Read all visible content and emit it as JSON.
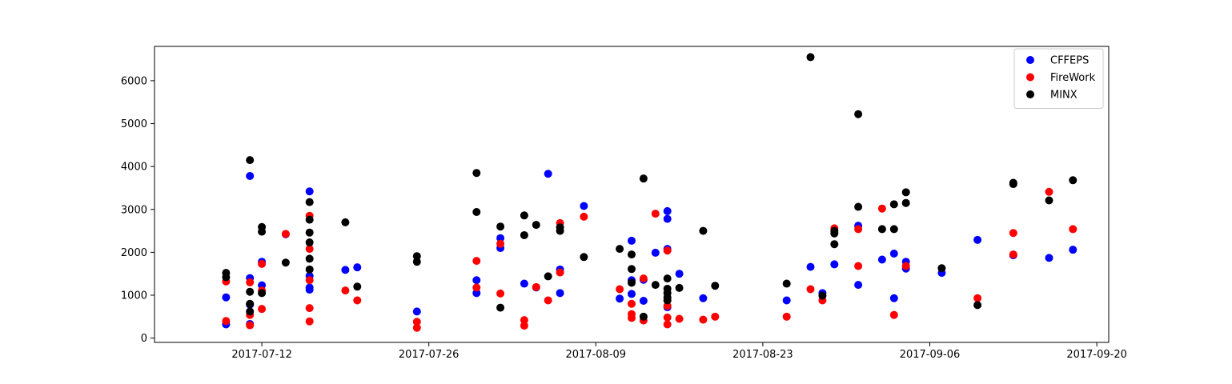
{
  "chart_data": {
    "type": "scatter",
    "title": "",
    "xlabel": "",
    "ylabel": "",
    "x_axis": {
      "type": "date",
      "range": [
        "2017-07-03",
        "2017-09-21"
      ],
      "ticks": [
        "2017-07-12",
        "2017-07-26",
        "2017-08-09",
        "2017-08-23",
        "2017-09-06",
        "2017-09-20"
      ]
    },
    "y_axis": {
      "range": [
        -100,
        6800
      ],
      "ticks": [
        0,
        1000,
        2000,
        3000,
        4000,
        5000,
        6000
      ]
    },
    "grid": false,
    "legend": {
      "placement": "top-right"
    },
    "series": [
      {
        "name": "CFFEPS",
        "color": "#0000ff",
        "points": [
          [
            "2017-07-09",
            950
          ],
          [
            "2017-07-09",
            320
          ],
          [
            "2017-07-11",
            3780
          ],
          [
            "2017-07-11",
            1400
          ],
          [
            "2017-07-11",
            780
          ],
          [
            "2017-07-11",
            330
          ],
          [
            "2017-07-12",
            1780
          ],
          [
            "2017-07-12",
            1230
          ],
          [
            "2017-07-14",
            2420
          ],
          [
            "2017-07-16",
            3420
          ],
          [
            "2017-07-16",
            1450
          ],
          [
            "2017-07-16",
            1180
          ],
          [
            "2017-07-16",
            1130
          ],
          [
            "2017-07-19",
            1590
          ],
          [
            "2017-07-20",
            1650
          ],
          [
            "2017-07-25",
            620
          ],
          [
            "2017-07-30",
            1350
          ],
          [
            "2017-07-30",
            1050
          ],
          [
            "2017-08-01",
            2330
          ],
          [
            "2017-08-01",
            2100
          ],
          [
            "2017-08-03",
            1270
          ],
          [
            "2017-08-04",
            1180
          ],
          [
            "2017-08-05",
            3830
          ],
          [
            "2017-08-06",
            1600
          ],
          [
            "2017-08-06",
            1050
          ],
          [
            "2017-08-08",
            3080
          ],
          [
            "2017-08-11",
            920
          ],
          [
            "2017-08-12",
            2270
          ],
          [
            "2017-08-12",
            1350
          ],
          [
            "2017-08-12",
            1030
          ],
          [
            "2017-08-13",
            1360
          ],
          [
            "2017-08-13",
            870
          ],
          [
            "2017-08-14",
            1990
          ],
          [
            "2017-08-15",
            2960
          ],
          [
            "2017-08-15",
            2780
          ],
          [
            "2017-08-15",
            2080
          ],
          [
            "2017-08-15",
            720
          ],
          [
            "2017-08-16",
            1500
          ],
          [
            "2017-08-18",
            930
          ],
          [
            "2017-08-25",
            880
          ],
          [
            "2017-08-27",
            1660
          ],
          [
            "2017-08-28",
            1050
          ],
          [
            "2017-08-29",
            1720
          ],
          [
            "2017-08-31",
            2620
          ],
          [
            "2017-08-31",
            1240
          ],
          [
            "2017-09-02",
            1830
          ],
          [
            "2017-09-03",
            1970
          ],
          [
            "2017-09-03",
            930
          ],
          [
            "2017-09-04",
            1780
          ],
          [
            "2017-09-04",
            1620
          ],
          [
            "2017-09-07",
            1520
          ],
          [
            "2017-09-10",
            2290
          ],
          [
            "2017-09-13",
            1930
          ],
          [
            "2017-09-16",
            1870
          ],
          [
            "2017-09-18",
            2060
          ]
        ]
      },
      {
        "name": "FireWork",
        "color": "#ff0000",
        "points": [
          [
            "2017-07-09",
            1320
          ],
          [
            "2017-07-09",
            400
          ],
          [
            "2017-07-11",
            1300
          ],
          [
            "2017-07-11",
            540
          ],
          [
            "2017-07-11",
            300
          ],
          [
            "2017-07-12",
            1730
          ],
          [
            "2017-07-12",
            1110
          ],
          [
            "2017-07-12",
            680
          ],
          [
            "2017-07-14",
            2430
          ],
          [
            "2017-07-16",
            2850
          ],
          [
            "2017-07-16",
            2080
          ],
          [
            "2017-07-16",
            1350
          ],
          [
            "2017-07-16",
            700
          ],
          [
            "2017-07-16",
            390
          ],
          [
            "2017-07-19",
            1110
          ],
          [
            "2017-07-20",
            880
          ],
          [
            "2017-07-25",
            380
          ],
          [
            "2017-07-25",
            240
          ],
          [
            "2017-07-30",
            1800
          ],
          [
            "2017-07-30",
            1180
          ],
          [
            "2017-08-01",
            2200
          ],
          [
            "2017-08-01",
            1040
          ],
          [
            "2017-08-03",
            420
          ],
          [
            "2017-08-03",
            290
          ],
          [
            "2017-08-04",
            1190
          ],
          [
            "2017-08-05",
            880
          ],
          [
            "2017-08-06",
            2680
          ],
          [
            "2017-08-06",
            1530
          ],
          [
            "2017-08-08",
            2830
          ],
          [
            "2017-08-11",
            1140
          ],
          [
            "2017-08-12",
            800
          ],
          [
            "2017-08-12",
            560
          ],
          [
            "2017-08-12",
            470
          ],
          [
            "2017-08-13",
            1390
          ],
          [
            "2017-08-13",
            410
          ],
          [
            "2017-08-14",
            2900
          ],
          [
            "2017-08-15",
            2040
          ],
          [
            "2017-08-15",
            750
          ],
          [
            "2017-08-15",
            480
          ],
          [
            "2017-08-15",
            320
          ],
          [
            "2017-08-16",
            450
          ],
          [
            "2017-08-18",
            430
          ],
          [
            "2017-08-19",
            500
          ],
          [
            "2017-08-25",
            500
          ],
          [
            "2017-08-27",
            1140
          ],
          [
            "2017-08-28",
            880
          ],
          [
            "2017-08-29",
            2560
          ],
          [
            "2017-08-31",
            2540
          ],
          [
            "2017-08-31",
            1680
          ],
          [
            "2017-09-02",
            3020
          ],
          [
            "2017-09-03",
            540
          ],
          [
            "2017-09-04",
            1680
          ],
          [
            "2017-09-10",
            930
          ],
          [
            "2017-09-13",
            2450
          ],
          [
            "2017-09-13",
            1950
          ],
          [
            "2017-09-16",
            3410
          ],
          [
            "2017-09-18",
            2540
          ]
        ]
      },
      {
        "name": "MINX",
        "color": "#000000",
        "points": [
          [
            "2017-07-09",
            1520
          ],
          [
            "2017-07-09",
            1420
          ],
          [
            "2017-07-11",
            4150
          ],
          [
            "2017-07-11",
            1080
          ],
          [
            "2017-07-11",
            800
          ],
          [
            "2017-07-11",
            620
          ],
          [
            "2017-07-12",
            2590
          ],
          [
            "2017-07-12",
            2480
          ],
          [
            "2017-07-12",
            1050
          ],
          [
            "2017-07-14",
            1760
          ],
          [
            "2017-07-16",
            3170
          ],
          [
            "2017-07-16",
            2760
          ],
          [
            "2017-07-16",
            2460
          ],
          [
            "2017-07-16",
            2230
          ],
          [
            "2017-07-16",
            1850
          ],
          [
            "2017-07-16",
            1600
          ],
          [
            "2017-07-19",
            2700
          ],
          [
            "2017-07-20",
            1200
          ],
          [
            "2017-07-25",
            1910
          ],
          [
            "2017-07-25",
            1780
          ],
          [
            "2017-07-30",
            3850
          ],
          [
            "2017-07-30",
            2940
          ],
          [
            "2017-08-01",
            2600
          ],
          [
            "2017-08-01",
            710
          ],
          [
            "2017-08-03",
            2860
          ],
          [
            "2017-08-03",
            2400
          ],
          [
            "2017-08-04",
            2640
          ],
          [
            "2017-08-05",
            1440
          ],
          [
            "2017-08-06",
            2580
          ],
          [
            "2017-08-06",
            2500
          ],
          [
            "2017-08-08",
            1890
          ],
          [
            "2017-08-11",
            2080
          ],
          [
            "2017-08-12",
            1950
          ],
          [
            "2017-08-12",
            1610
          ],
          [
            "2017-08-12",
            1290
          ],
          [
            "2017-08-13",
            3720
          ],
          [
            "2017-08-13",
            500
          ],
          [
            "2017-08-14",
            1240
          ],
          [
            "2017-08-15",
            1390
          ],
          [
            "2017-08-15",
            1150
          ],
          [
            "2017-08-15",
            1050
          ],
          [
            "2017-08-15",
            950
          ],
          [
            "2017-08-15",
            880
          ],
          [
            "2017-08-16",
            1170
          ],
          [
            "2017-08-18",
            2500
          ],
          [
            "2017-08-19",
            1220
          ],
          [
            "2017-08-25",
            1270
          ],
          [
            "2017-08-27",
            6550
          ],
          [
            "2017-08-28",
            990
          ],
          [
            "2017-08-29",
            2500
          ],
          [
            "2017-08-29",
            2440
          ],
          [
            "2017-08-29",
            2190
          ],
          [
            "2017-08-31",
            5220
          ],
          [
            "2017-08-31",
            3060
          ],
          [
            "2017-09-02",
            2540
          ],
          [
            "2017-09-03",
            3120
          ],
          [
            "2017-09-03",
            2540
          ],
          [
            "2017-09-04",
            3400
          ],
          [
            "2017-09-04",
            3150
          ],
          [
            "2017-09-07",
            1630
          ],
          [
            "2017-09-10",
            770
          ],
          [
            "2017-09-13",
            3620
          ],
          [
            "2017-09-13",
            3590
          ],
          [
            "2017-09-16",
            3210
          ],
          [
            "2017-09-18",
            3680
          ]
        ]
      }
    ]
  }
}
